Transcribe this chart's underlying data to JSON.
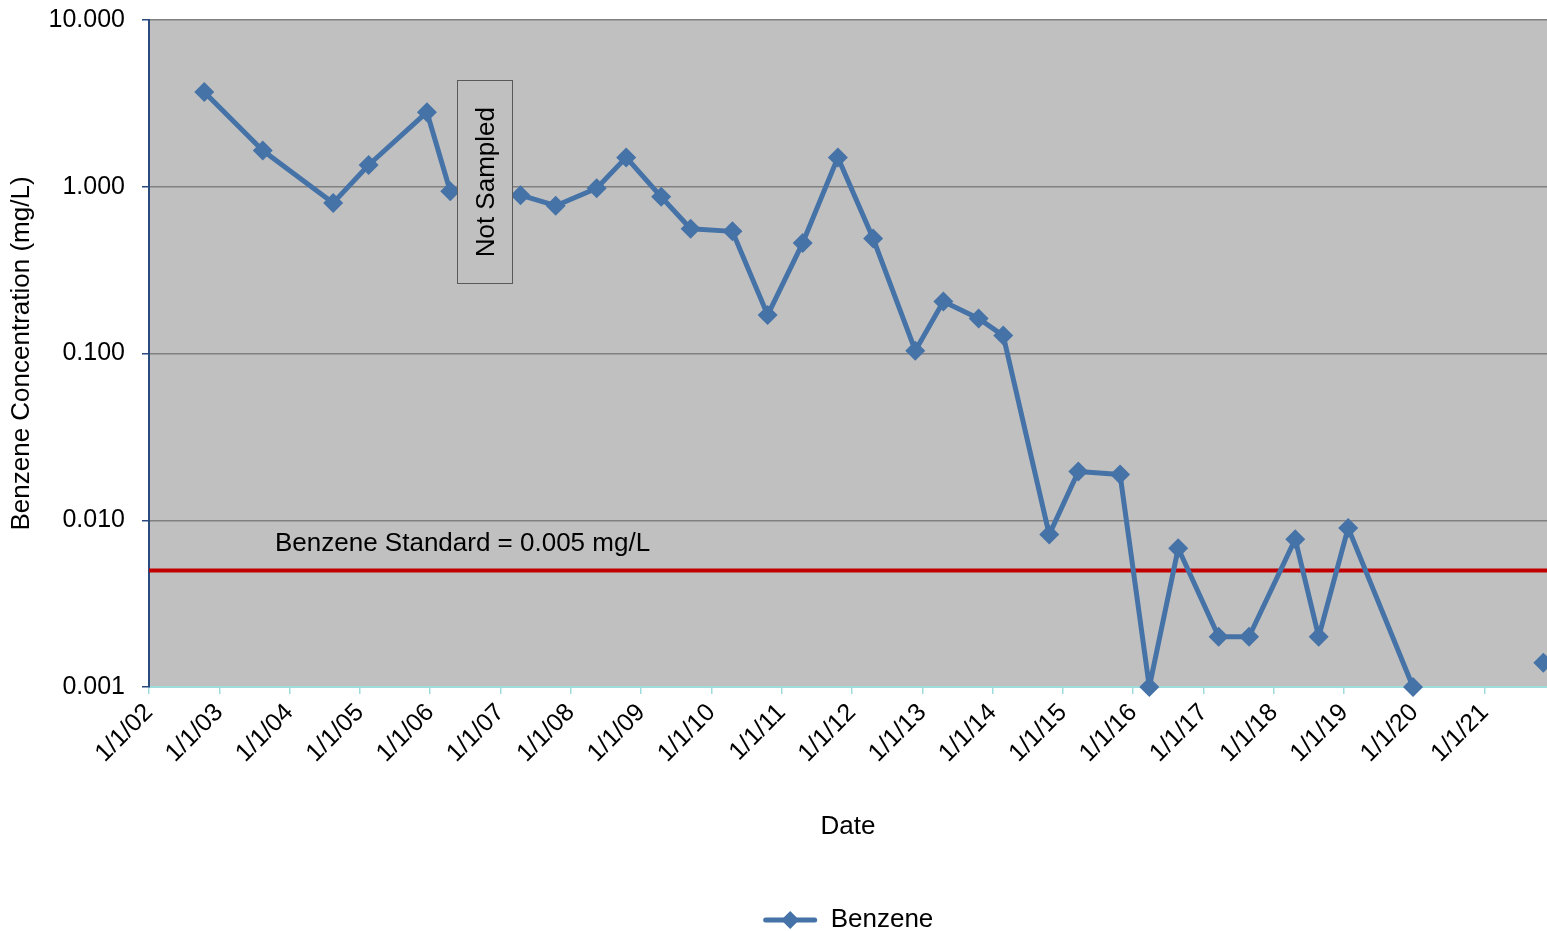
{
  "chart_data": {
    "type": "line",
    "xlabel": "Date",
    "ylabel": "Benzene Concentration (mg/L)",
    "x": [
      "2002-10-15",
      "2003-08-15",
      "2004-08-15",
      "2005-02-15",
      "2005-12-15",
      "2006-04-15",
      "2006-10-15",
      "2007-04-15",
      "2007-10-15",
      "2008-05-15",
      "2008-10-15",
      "2009-04-15",
      "2009-09-15",
      "2010-04-20",
      "2010-10-20",
      "2011-04-20",
      "2011-10-20",
      "2012-04-20",
      "2012-11-25",
      "2013-04-20",
      "2013-10-20",
      "2014-02-25",
      "2014-10-22",
      "2015-03-22",
      "2015-10-25",
      "2016-03-25",
      "2016-08-22",
      "2017-03-20",
      "2017-08-25",
      "2018-04-22",
      "2018-08-22",
      "2019-01-22",
      "2019-12-25",
      "2020-11-01",
      "2021-11-01"
    ],
    "series": [
      {
        "name": "Benzene",
        "color": "#4572a7",
        "values": [
          3.7,
          1.65,
          0.8,
          1.35,
          2.8,
          0.94,
          null,
          0.89,
          0.77,
          0.98,
          1.5,
          0.87,
          0.56,
          0.54,
          0.17,
          0.46,
          1.5,
          0.49,
          0.104,
          0.205,
          0.162,
          0.128,
          0.0082,
          0.0196,
          0.0188,
          0.001,
          0.0068,
          0.002,
          0.002,
          0.0077,
          0.002,
          0.009,
          0.001,
          null,
          0.0014
        ]
      }
    ],
    "xlim": [
      "2002-01-01",
      "2021-11-20"
    ],
    "xticks": [
      {
        "value": "2002-01-01",
        "label": "1/1/02"
      },
      {
        "value": "2003-01-01",
        "label": "1/1/03"
      },
      {
        "value": "2004-01-01",
        "label": "1/1/04"
      },
      {
        "value": "2005-01-01",
        "label": "1/1/05"
      },
      {
        "value": "2006-01-01",
        "label": "1/1/06"
      },
      {
        "value": "2007-01-01",
        "label": "1/1/07"
      },
      {
        "value": "2008-01-01",
        "label": "1/1/08"
      },
      {
        "value": "2009-01-01",
        "label": "1/1/09"
      },
      {
        "value": "2010-01-01",
        "label": "1/1/10"
      },
      {
        "value": "2011-01-01",
        "label": "1/1/11"
      },
      {
        "value": "2012-01-01",
        "label": "1/1/12"
      },
      {
        "value": "2013-01-01",
        "label": "1/1/13"
      },
      {
        "value": "2014-01-01",
        "label": "1/1/14"
      },
      {
        "value": "2015-01-01",
        "label": "1/1/15"
      },
      {
        "value": "2016-01-01",
        "label": "1/1/16"
      },
      {
        "value": "2017-01-01",
        "label": "1/1/17"
      },
      {
        "value": "2018-01-01",
        "label": "1/1/18"
      },
      {
        "value": "2019-01-01",
        "label": "1/1/19"
      },
      {
        "value": "2020-01-01",
        "label": "1/1/20"
      },
      {
        "value": "2021-01-01",
        "label": "1/1/21"
      }
    ],
    "ylim": [
      0.001,
      10
    ],
    "yticks": [
      0.001,
      {
        "value": 0.01,
        "label": "0.010"
      },
      {
        "value": 0.1,
        "label": "0.100"
      },
      {
        "value": 1,
        "label": "1.000"
      },
      {
        "value": 10,
        "label": "10.000"
      }
    ],
    "log": "y",
    "grid": "y",
    "legend": "bottom",
    "marker": "diamond",
    "line_style": "solid",
    "ref_lines": [
      {
        "axis": "y",
        "value": 0.005,
        "label": "Benzene Standard = 0.005 mg/L",
        "color": "#c00000"
      }
    ],
    "annotations": [
      "Not Sampled"
    ]
  }
}
